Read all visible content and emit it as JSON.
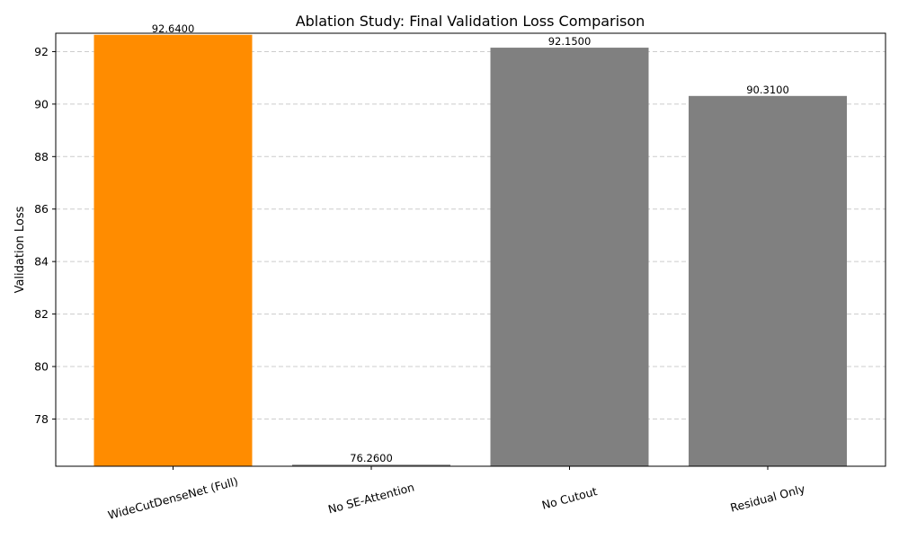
{
  "chart_data": {
    "type": "bar",
    "title": "Ablation Study: Final Validation Loss Comparison",
    "xlabel": "",
    "ylabel": "Validation Loss",
    "categories": [
      "WideCutDenseNet (Full)",
      "No SE-Attention",
      "No Cutout",
      "Residual Only"
    ],
    "values": [
      92.64,
      76.26,
      92.15,
      90.31
    ],
    "value_labels": [
      "92.6400",
      "76.2600",
      "92.1500",
      "90.3100"
    ],
    "colors": [
      "#ff8c00",
      "#808080",
      "#808080",
      "#808080"
    ],
    "ylim": [
      76.2,
      92.7
    ],
    "yticks": [
      78,
      80,
      82,
      84,
      86,
      88,
      90,
      92
    ],
    "grid": "y-dashed",
    "legend": "none"
  }
}
